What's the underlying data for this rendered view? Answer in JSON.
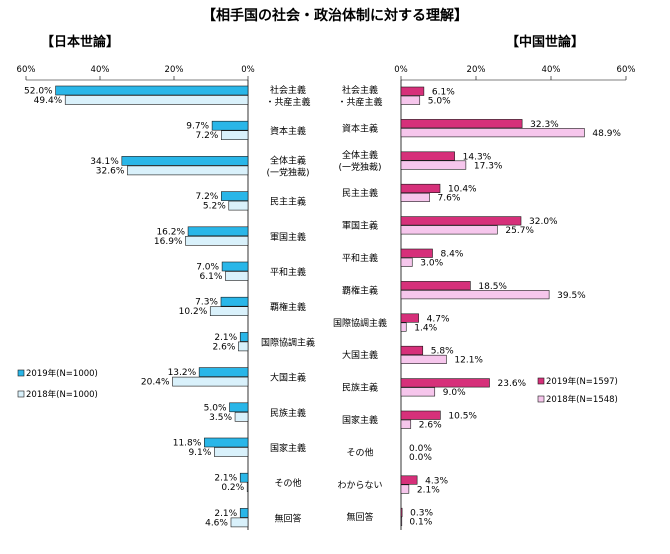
{
  "title": "【相手国の社会・政治体制に対する理解】",
  "chart_data": [
    {
      "type": "bar",
      "orientation": "horizontal",
      "subtitle": "【日本世論】",
      "ticks": [
        "60%",
        "40%",
        "20%",
        "0%"
      ],
      "xlim": [
        0,
        60
      ],
      "categories": [
        [
          "社会主義",
          "・共産主義"
        ],
        [
          "資本主義"
        ],
        [
          "全体主義",
          "(一党独裁)"
        ],
        [
          "民主主義"
        ],
        [
          "軍国主義"
        ],
        [
          "平和主義"
        ],
        [
          "覇権主義"
        ],
        [
          "国際協調主義"
        ],
        [
          "大国主義"
        ],
        [
          "民族主義"
        ],
        [
          "国家主義"
        ],
        [
          "その他"
        ],
        [
          "無回答"
        ]
      ],
      "series": [
        {
          "name": "2019年(N=1000)",
          "color": "#29b6e8",
          "values": [
            52.0,
            9.7,
            34.1,
            7.2,
            16.2,
            7.0,
            7.3,
            2.1,
            13.2,
            5.0,
            11.8,
            2.1,
            2.1
          ],
          "labels": [
            "52.0%",
            "9.7%",
            "34.1%",
            "7.2%",
            "16.2%",
            "7.0%",
            "7.3%",
            "2.1%",
            "13.2%",
            "5.0%",
            "11.8%",
            "2.1%",
            "2.1%"
          ]
        },
        {
          "name": "2018年(N=1000)",
          "color": "#d9f1fb",
          "values": [
            49.4,
            7.2,
            32.6,
            5.2,
            16.9,
            6.1,
            10.2,
            2.6,
            20.4,
            3.5,
            9.1,
            0.2,
            4.6
          ],
          "labels": [
            "49.4%",
            "7.2%",
            "32.6%",
            "5.2%",
            "16.9%",
            "6.1%",
            "10.2%",
            "2.6%",
            "20.4%",
            "3.5%",
            "9.1%",
            "0.2%",
            "4.6%"
          ]
        }
      ]
    },
    {
      "type": "bar",
      "orientation": "horizontal",
      "subtitle": "【中国世論】",
      "ticks": [
        "0%",
        "20%",
        "40%",
        "60%"
      ],
      "xlim": [
        0,
        60
      ],
      "categories": [
        [
          "社会主義",
          "・共産主義"
        ],
        [
          "資本主義"
        ],
        [
          "全体主義",
          "(一党独裁)"
        ],
        [
          "民主主義"
        ],
        [
          "軍国主義"
        ],
        [
          "平和主義"
        ],
        [
          "覇権主義"
        ],
        [
          "国際協調主義"
        ],
        [
          "大国主義"
        ],
        [
          "民族主義"
        ],
        [
          "国家主義"
        ],
        [
          "その他"
        ],
        [
          "わからない"
        ],
        [
          "無回答"
        ]
      ],
      "series": [
        {
          "name": "2019年(N=1597)",
          "color": "#d6307a",
          "values": [
            6.1,
            32.3,
            14.3,
            10.4,
            32.0,
            8.4,
            18.5,
            4.7,
            5.8,
            23.6,
            10.5,
            0.0,
            4.3,
            0.3
          ],
          "labels": [
            "6.1%",
            "32.3%",
            "14.3%",
            "10.4%",
            "32.0%",
            "8.4%",
            "18.5%",
            "4.7%",
            "5.8%",
            "23.6%",
            "10.5%",
            "0.0%",
            "4.3%",
            "0.3%"
          ]
        },
        {
          "name": "2018年(N=1548)",
          "color": "#f6c6ec",
          "values": [
            5.0,
            48.9,
            17.3,
            7.6,
            25.7,
            3.0,
            39.5,
            1.4,
            12.1,
            9.0,
            2.6,
            0.0,
            2.1,
            0.1
          ],
          "labels": [
            "5.0%",
            "48.9%",
            "17.3%",
            "7.6%",
            "25.7%",
            "3.0%",
            "39.5%",
            "1.4%",
            "12.1%",
            "9.0%",
            "2.6%",
            "0.0%",
            "2.1%",
            "0.1%"
          ]
        }
      ]
    }
  ]
}
